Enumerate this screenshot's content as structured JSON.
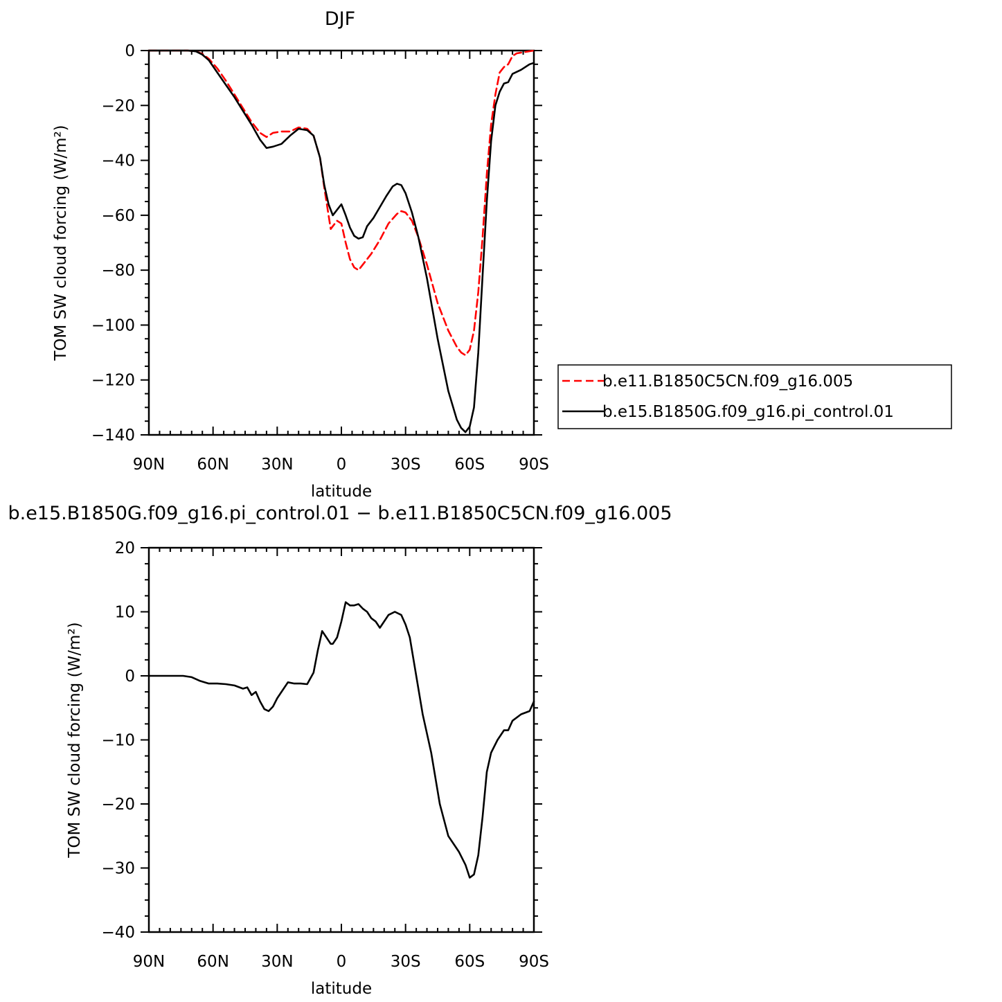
{
  "chart_data": [
    {
      "type": "line",
      "title": "DJF",
      "xlabel": "latitude",
      "ylabel": "TOM SW cloud forcing (W/m²)",
      "xlim": [
        90,
        -90
      ],
      "ylim": [
        -140,
        0
      ],
      "xticks": [
        90,
        60,
        30,
        0,
        -30,
        -60,
        -90
      ],
      "xtick_labels": [
        "90N",
        "60N",
        "30N",
        "0",
        "30S",
        "60S",
        "90S"
      ],
      "yticks": [
        0,
        -20,
        -40,
        -60,
        -80,
        -100,
        -120,
        -140
      ],
      "ytick_labels": [
        "0",
        "−20",
        "−40",
        "−60",
        "−80",
        "−100",
        "−120",
        "−140"
      ],
      "legend": "right",
      "series": [
        {
          "name": "b.e11.B1850C5CN.f09_g16.005",
          "color": "#ff0000",
          "dash": "dashed",
          "x": [
            90,
            80,
            72,
            68,
            65,
            62,
            58,
            54,
            50,
            46,
            42,
            38,
            35,
            32,
            28,
            24,
            20,
            16,
            13,
            10,
            8,
            6,
            5,
            4,
            2,
            0,
            -2,
            -4,
            -6,
            -8,
            -10,
            -14,
            -18,
            -22,
            -26,
            -28,
            -30,
            -33,
            -36,
            -40,
            -45,
            -50,
            -54,
            -56,
            -58,
            -60,
            -62,
            -64,
            -66,
            -68,
            -70,
            -72,
            -74,
            -76,
            -78,
            -80,
            -82,
            -86,
            -90
          ],
          "y": [
            0,
            0,
            0,
            -0.3,
            -1.2,
            -3,
            -6.5,
            -11,
            -16,
            -21,
            -26,
            -30,
            -31.5,
            -30,
            -29.5,
            -29.5,
            -28,
            -28.5,
            -31,
            -39,
            -50,
            -60,
            -65,
            -64,
            -62,
            -63,
            -70,
            -76,
            -79,
            -80,
            -78,
            -74,
            -69,
            -63,
            -59.5,
            -58.5,
            -59,
            -62,
            -68,
            -78,
            -92,
            -102,
            -108,
            -110,
            -111,
            -109,
            -102,
            -88,
            -68,
            -45,
            -27,
            -16,
            -8,
            -6,
            -5,
            -2,
            -1,
            -0.5,
            0
          ]
        },
        {
          "name": "b.e15.B1850G.f09_g16.pi_control.01",
          "color": "#000000",
          "dash": "solid",
          "x": [
            90,
            80,
            72,
            68,
            65,
            62,
            58,
            54,
            50,
            46,
            42,
            38,
            35,
            32,
            28,
            24,
            20,
            16,
            13,
            10,
            8,
            6,
            4,
            2,
            0,
            -2,
            -4,
            -6,
            -8,
            -10,
            -12,
            -15,
            -18,
            -21,
            -24,
            -26,
            -28,
            -30,
            -33,
            -36,
            -40,
            -45,
            -50,
            -54,
            -56,
            -58,
            -60,
            -62,
            -64,
            -66,
            -68,
            -70,
            -72,
            -74,
            -76,
            -78,
            -80,
            -84,
            -88,
            -90
          ],
          "y": [
            0,
            0,
            0,
            -0.3,
            -1.5,
            -3.5,
            -8,
            -12.5,
            -17,
            -22,
            -27,
            -32.5,
            -35.5,
            -35,
            -34,
            -31,
            -28.5,
            -29,
            -31,
            -39,
            -49,
            -56,
            -60,
            -58,
            -56,
            -60,
            -64.5,
            -67.5,
            -68.5,
            -68,
            -64,
            -61,
            -57,
            -53,
            -49.5,
            -48.5,
            -49,
            -52,
            -59,
            -68,
            -83,
            -105,
            -124,
            -134.5,
            -137.5,
            -139,
            -137,
            -130,
            -110,
            -82,
            -55,
            -33,
            -20,
            -15,
            -12,
            -11.5,
            -8.5,
            -7,
            -5,
            -4.5
          ]
        }
      ]
    },
    {
      "type": "line",
      "title": "b.e15.B1850G.f09_g16.pi_control.01 − b.e11.B1850C5CN.f09_g16.005",
      "xlabel": "latitude",
      "ylabel": "TOM SW cloud forcing (W/m²)",
      "xlim": [
        90,
        -90
      ],
      "ylim": [
        -40,
        20
      ],
      "xticks": [
        90,
        60,
        30,
        0,
        -30,
        -60,
        -90
      ],
      "xtick_labels": [
        "90N",
        "60N",
        "30N",
        "0",
        "30S",
        "60S",
        "90S"
      ],
      "yticks": [
        20,
        10,
        0,
        -10,
        -20,
        -30,
        -40
      ],
      "ytick_labels": [
        "20",
        "10",
        "0",
        "−10",
        "−20",
        "−30",
        "−40"
      ],
      "series": [
        {
          "color": "#000000",
          "dash": "solid",
          "x": [
            90,
            80,
            74,
            70,
            66,
            62,
            58,
            54,
            50,
            46,
            44,
            42,
            40,
            38,
            36,
            34,
            32,
            30,
            28,
            25,
            22,
            19,
            16,
            13,
            11,
            9,
            7,
            5,
            4,
            2,
            0,
            -2,
            -4,
            -6,
            -8,
            -10,
            -12,
            -14,
            -16,
            -18,
            -20,
            -22,
            -25,
            -28,
            -30,
            -32,
            -35,
            -38,
            -42,
            -46,
            -50,
            -53,
            -55,
            -58,
            -60,
            -62,
            -64,
            -66,
            -68,
            -70,
            -73,
            -76,
            -78,
            -80,
            -84,
            -88,
            -90
          ],
          "y": [
            0,
            0,
            0,
            -0.2,
            -0.8,
            -1.2,
            -1.2,
            -1.3,
            -1.5,
            -2,
            -1.8,
            -3,
            -2.5,
            -4,
            -5.2,
            -5.5,
            -4.8,
            -3.5,
            -2.5,
            -1,
            -1.2,
            -1.2,
            -1.3,
            0.5,
            4,
            7,
            6,
            5,
            5,
            6,
            8.5,
            11.5,
            11,
            11,
            11.2,
            10.5,
            10,
            9,
            8.5,
            7.5,
            8.5,
            9.5,
            10,
            9.5,
            8,
            6,
            0,
            -6,
            -12,
            -20,
            -25,
            -26.5,
            -27.5,
            -29.5,
            -31.5,
            -31,
            -28,
            -22,
            -15,
            -12,
            -10,
            -8.5,
            -8.5,
            -7,
            -6,
            -5.5,
            -4
          ]
        }
      ]
    }
  ]
}
